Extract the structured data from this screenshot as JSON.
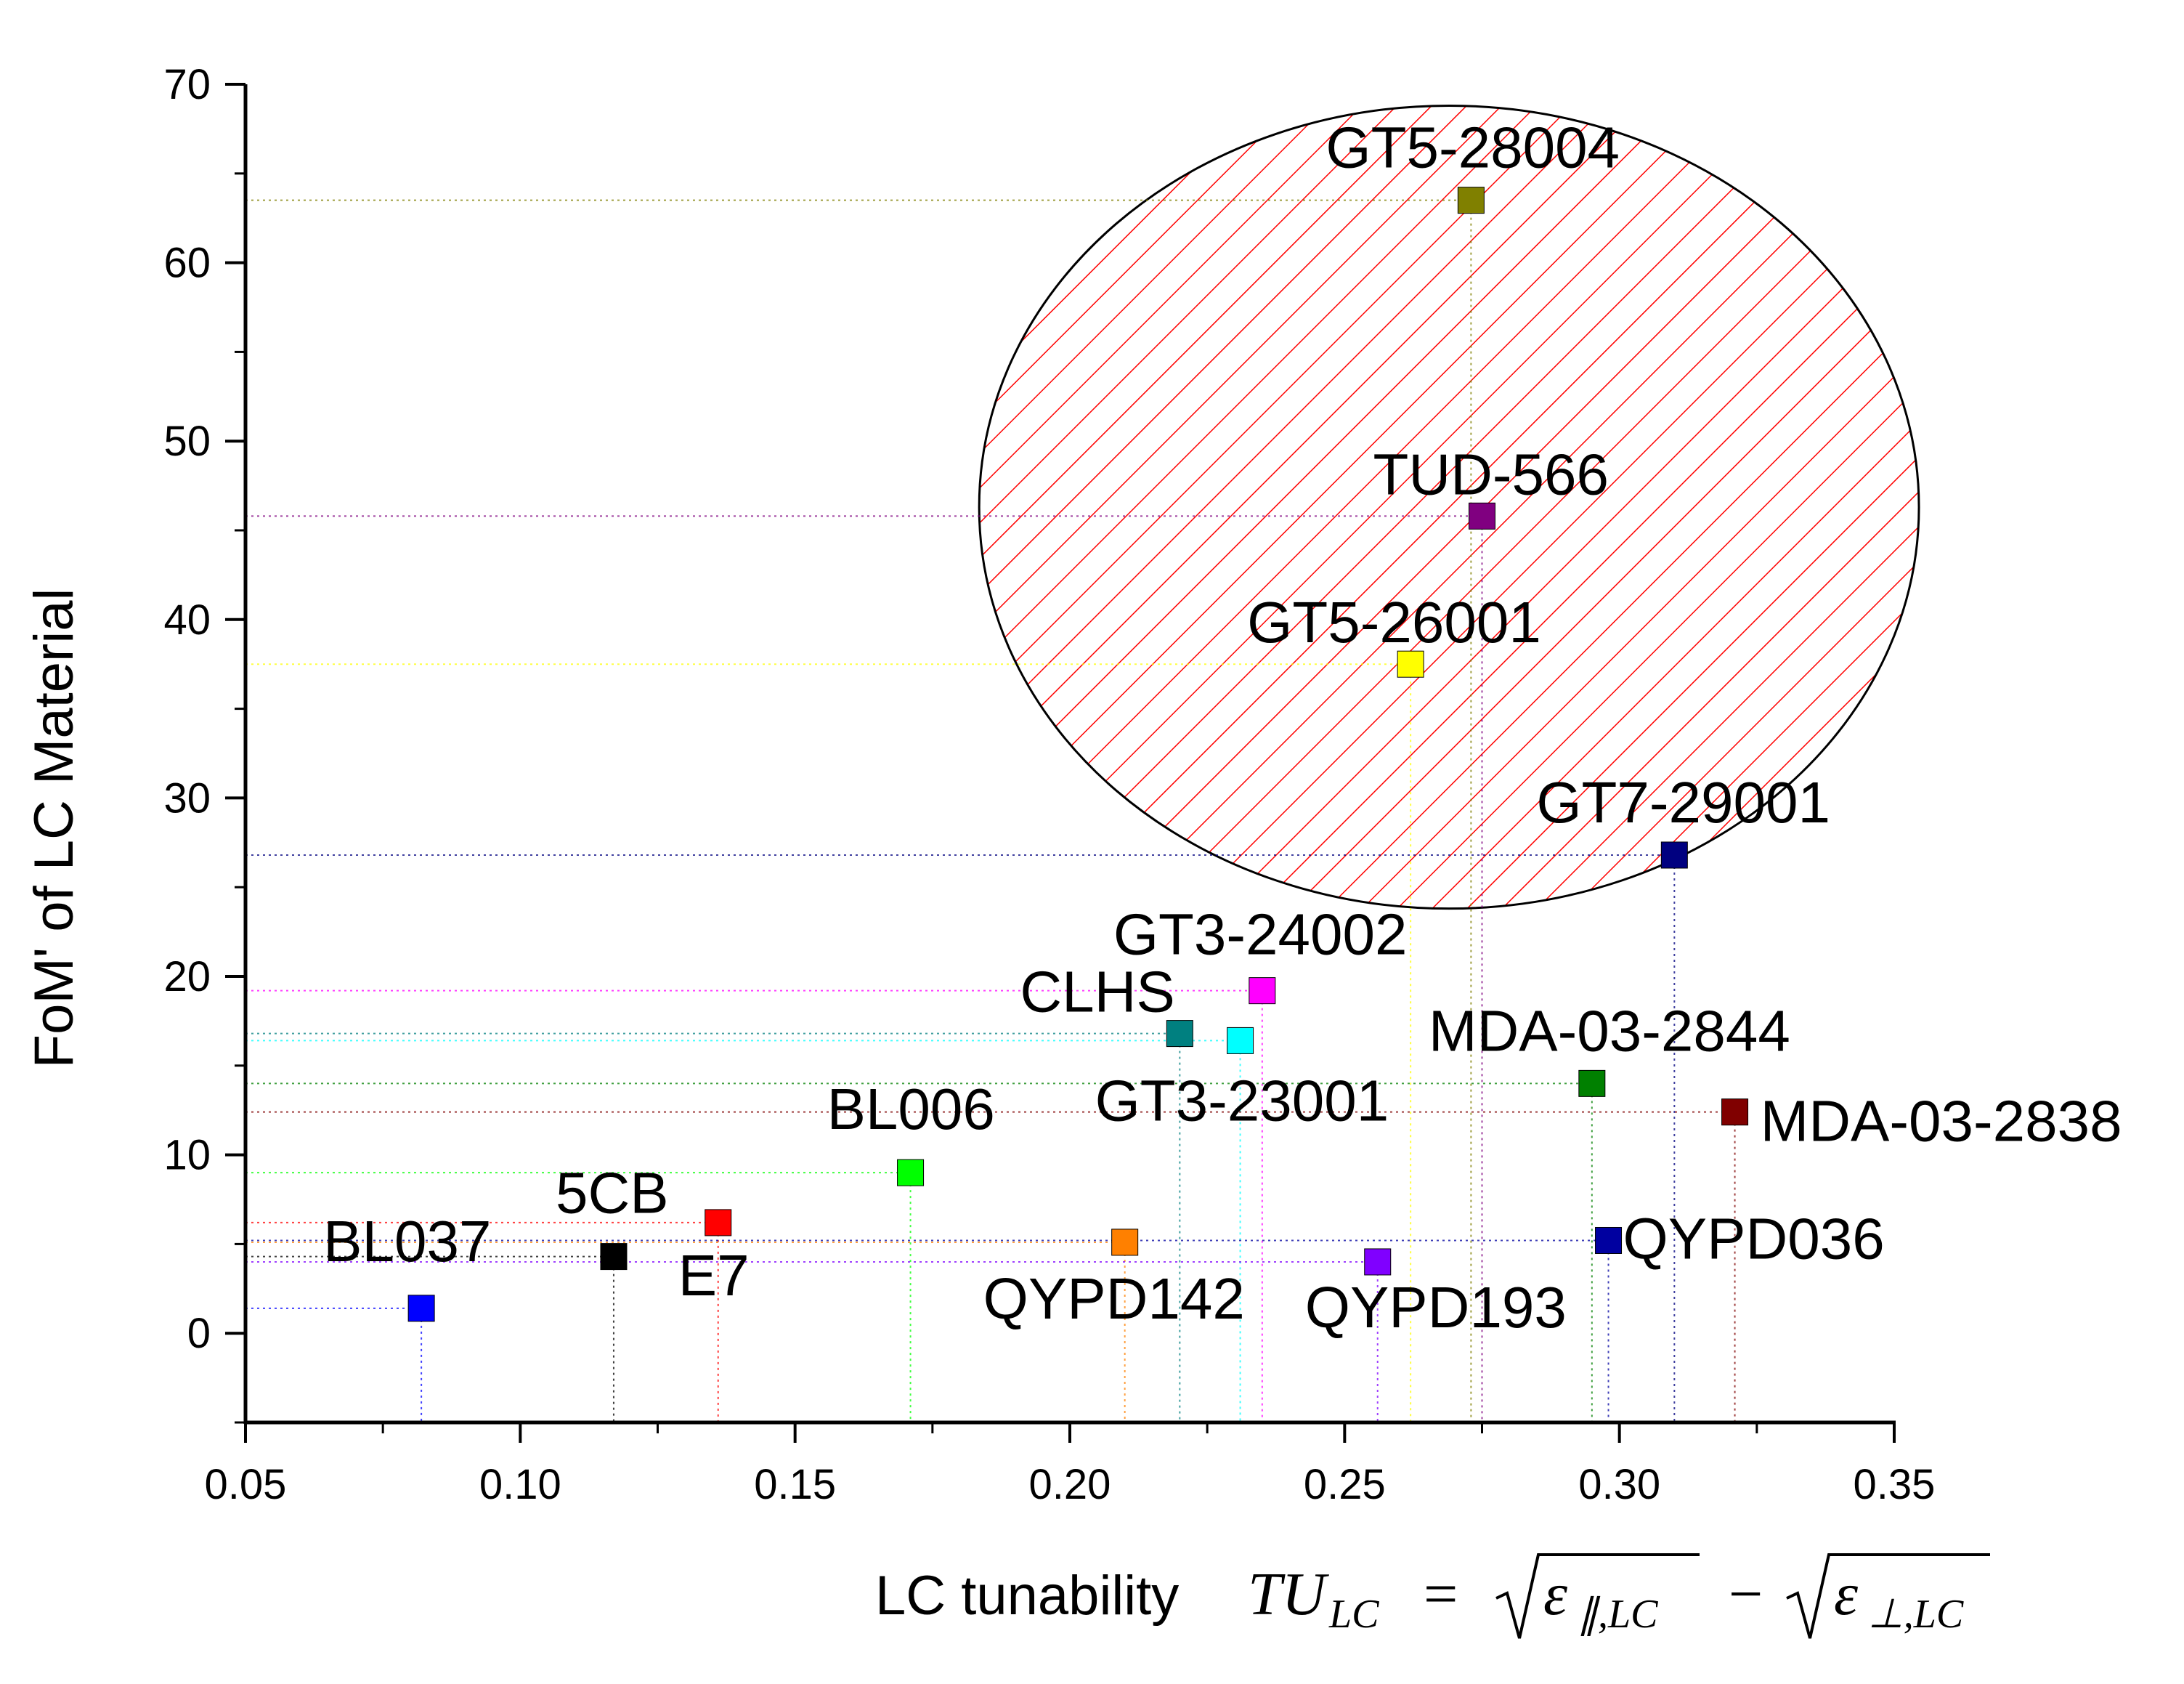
{
  "chart_data": {
    "type": "scatter",
    "title": "",
    "xlabel": "LC tunability",
    "xlabel_formula": {
      "lhs": "TU",
      "lhs_sub": "LC",
      "eq": "=",
      "term1": "ε",
      "term1_sub": "∥,LC",
      "minus": "−",
      "term2": "ε",
      "term2_sub": "⊥,LC"
    },
    "ylabel": "FoM' of LC Material",
    "xlim": [
      0.05,
      0.35
    ],
    "ylim": [
      -5,
      70
    ],
    "xticks": [
      "0.05",
      "0.10",
      "0.15",
      "0.20",
      "0.25",
      "0.30",
      "0.35"
    ],
    "yticks": [
      "0",
      "10",
      "20",
      "30",
      "40",
      "50",
      "60",
      "70"
    ],
    "highlight_region": {
      "shape": "ellipse",
      "center": [
        0.269,
        46.3
      ],
      "rx": 0.0855,
      "ry": 22.5,
      "fill": "hatched",
      "color": "#ff0000"
    },
    "points": [
      {
        "name": "BL037",
        "x": 0.082,
        "y": 1.4,
        "color": "#0000ff"
      },
      {
        "name": "5CB",
        "x": 0.117,
        "y": 4.3,
        "color": "#000000"
      },
      {
        "name": "E7",
        "x": 0.136,
        "y": 6.2,
        "color": "#ff0000"
      },
      {
        "name": "BL006",
        "x": 0.171,
        "y": 9.0,
        "color": "#00ff00"
      },
      {
        "name": "QYPD142",
        "x": 0.21,
        "y": 5.1,
        "color": "#ff8000"
      },
      {
        "name": "CLHS",
        "x": 0.22,
        "y": 16.8,
        "color": "#008080"
      },
      {
        "name": "GT3-23001",
        "x": 0.231,
        "y": 16.4,
        "color": "#00ffff"
      },
      {
        "name": "GT3-24002",
        "x": 0.235,
        "y": 19.2,
        "color": "#ff00ff"
      },
      {
        "name": "QYPD193",
        "x": 0.256,
        "y": 4.0,
        "color": "#8000ff"
      },
      {
        "name": "GT5-26001",
        "x": 0.262,
        "y": 37.5,
        "color": "#ffff00"
      },
      {
        "name": "GT5-28004",
        "x": 0.273,
        "y": 63.5,
        "color": "#808000"
      },
      {
        "name": "TUD-566",
        "x": 0.275,
        "y": 45.8,
        "color": "#800080"
      },
      {
        "name": "MDA-03-2844",
        "x": 0.295,
        "y": 14.0,
        "color": "#008000"
      },
      {
        "name": "QYPD036",
        "x": 0.298,
        "y": 5.2,
        "color": "#0000a0"
      },
      {
        "name": "GT7-29001",
        "x": 0.31,
        "y": 26.8,
        "color": "#000080"
      },
      {
        "name": "MDA-03-2838",
        "x": 0.321,
        "y": 12.4,
        "color": "#800000"
      }
    ]
  }
}
